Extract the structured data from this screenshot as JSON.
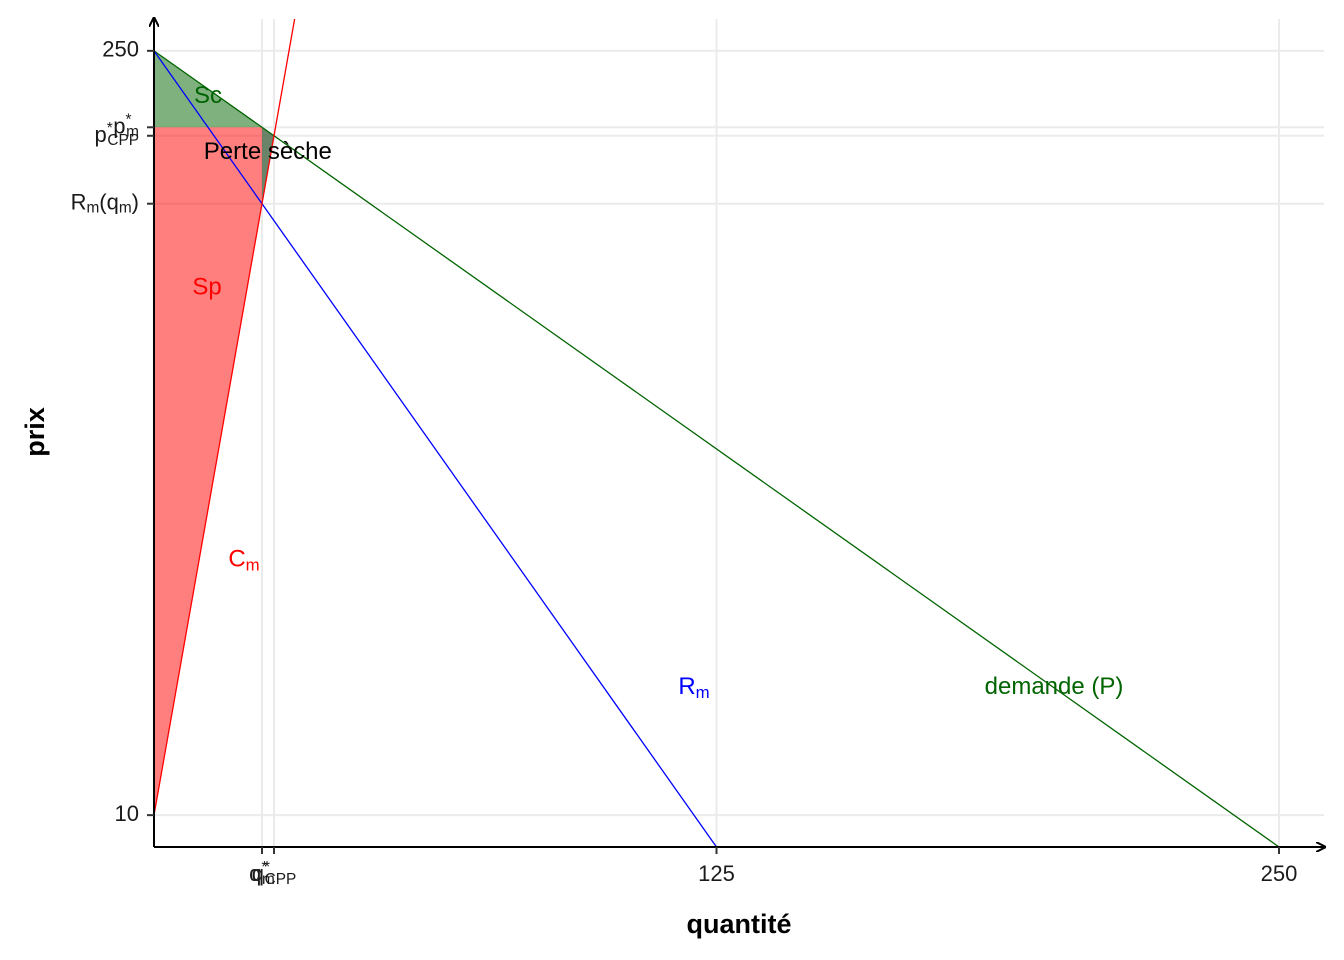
{
  "chart_data": {
    "type": "line",
    "x_label": "quantité",
    "y_label": "prix",
    "xlim": [
      0,
      260
    ],
    "ylim": [
      0,
      260
    ],
    "grid": true,
    "xticks": [
      {
        "value": 24,
        "label": [
          {
            "text": "q"
          },
          {
            "sup": "*"
          },
          {
            "sub": "m"
          }
        ]
      },
      {
        "value": 26.67,
        "label": [
          {
            "text": "q"
          },
          {
            "sup": "*"
          },
          {
            "sub": "CPP"
          }
        ]
      },
      125,
      250
    ],
    "yticks": [
      10,
      {
        "value": 202,
        "label": [
          {
            "text": "R"
          },
          {
            "sub": "m"
          },
          {
            "text": "(q"
          },
          {
            "sub": "m"
          },
          {
            "text": ")"
          }
        ]
      },
      {
        "value": 223.33,
        "label": [
          {
            "text": "p"
          },
          {
            "sup": "*"
          },
          {
            "sub": "CPP"
          }
        ]
      },
      {
        "value": 226,
        "label": [
          {
            "text": "p"
          },
          {
            "sup": "*"
          },
          {
            "sub": "m"
          }
        ]
      },
      250
    ],
    "areas": [
      {
        "x": [
          0,
          24,
          0
        ],
        "y": [
          250,
          226,
          226
        ],
        "color": "#006400",
        "opacity": 0.5
      },
      {
        "x": [
          0,
          24,
          24,
          0
        ],
        "y": [
          226,
          226,
          202,
          10
        ],
        "color": "#ff0000",
        "opacity": 0.5
      },
      {
        "x": [
          24,
          26.67,
          24
        ],
        "y": [
          226,
          223.33,
          202
        ],
        "color": "#4f6f4f",
        "opacity": 0.85
      }
    ],
    "series": [
      {
        "x": [
          0,
          250
        ],
        "values": [
          250,
          0
        ],
        "color": "#006400"
      },
      {
        "x": [
          0,
          125
        ],
        "values": [
          250,
          0
        ],
        "color": "#0000ff"
      },
      {
        "x": [
          0,
          31.25
        ],
        "values": [
          10,
          260
        ],
        "color": "#ff0000"
      }
    ],
    "annotations": [
      {
        "label": [
          {
            "text": "Sc"
          }
        ],
        "x": 12,
        "y": 235.5,
        "color": "#006400"
      },
      {
        "label": [
          {
            "text": "Perte sèche"
          }
        ],
        "x": 25.3,
        "y": 218,
        "color": "#000000"
      },
      {
        "label": [
          {
            "text": "Sp"
          }
        ],
        "x": 11.8,
        "y": 175.3,
        "color": "#ff0000"
      },
      {
        "label": [
          {
            "text": "C"
          },
          {
            "sub": "m"
          }
        ],
        "x": 20,
        "y": 90,
        "color": "#ff0000"
      },
      {
        "label": [
          {
            "text": "R"
          },
          {
            "sub": "m"
          }
        ],
        "x": 120,
        "y": 50,
        "color": "#0000ff"
      },
      {
        "label": [
          {
            "text": "demande (P)"
          }
        ],
        "x": 200,
        "y": 50,
        "color": "#006400"
      }
    ]
  }
}
